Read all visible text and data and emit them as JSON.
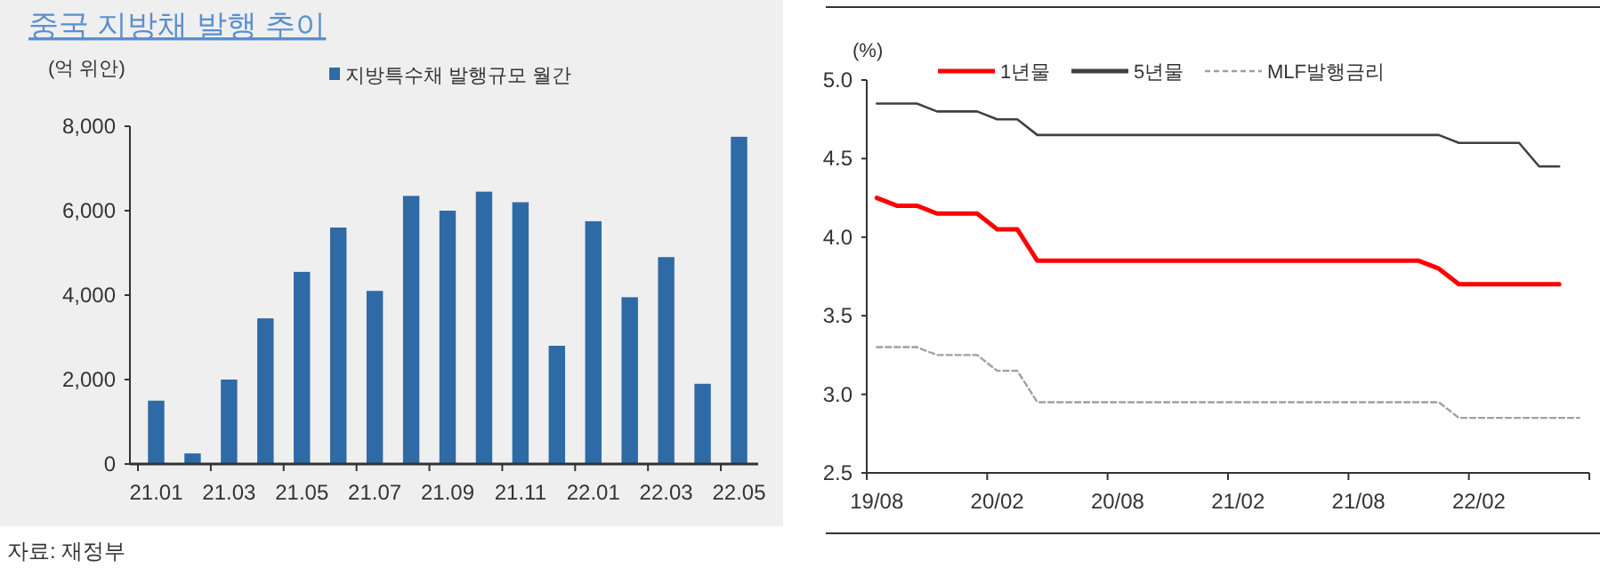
{
  "chart_data": [
    {
      "type": "bar",
      "title": "중국 지방채 발행 추이",
      "ylabel": "(억 위안)",
      "categories": [
        "21.01",
        null,
        "21.03",
        null,
        "21.05",
        null,
        "21.07",
        null,
        "21.09",
        null,
        "21.11",
        null,
        "22.01",
        null,
        "22.03",
        null,
        "22.05"
      ],
      "series": [
        {
          "name": "지방특수채 발행규모 월간",
          "color": "#2e6aa6",
          "values": [
            1500,
            250,
            2000,
            3450,
            4550,
            5600,
            4100,
            6350,
            6000,
            6450,
            6200,
            2800,
            5750,
            3950,
            4900,
            1900,
            7750
          ]
        }
      ],
      "ylim": [
        0,
        8000
      ],
      "yticks": [
        {
          "value": 0,
          "label": "0"
        },
        {
          "value": 2000,
          "label": "2,000"
        },
        {
          "value": 4000,
          "label": "4,000"
        },
        {
          "value": 6000,
          "label": "6,000"
        },
        {
          "value": 8000,
          "label": "8,000"
        }
      ],
      "grid": false,
      "legend": "top",
      "annotations": [
        "자료: 재정부"
      ]
    },
    {
      "type": "line",
      "ylabel": "(%)",
      "categories": [
        "19/08",
        null,
        null,
        null,
        null,
        null,
        "20/02",
        null,
        null,
        null,
        null,
        null,
        "20/08",
        null,
        null,
        null,
        null,
        null,
        "21/02",
        null,
        null,
        null,
        null,
        null,
        "21/08",
        null,
        null,
        null,
        null,
        null,
        "22/02",
        null,
        null,
        null,
        null,
        null
      ],
      "ylim": [
        2.5,
        5
      ],
      "yticks": [
        {
          "value": 2.5,
          "label": "2.5"
        },
        {
          "value": 3,
          "label": "3.0"
        },
        {
          "value": 3.5,
          "label": "3.5"
        },
        {
          "value": 4,
          "label": "4.0"
        },
        {
          "value": 4.5,
          "label": "4.5"
        },
        {
          "value": 5,
          "label": "5.0"
        }
      ],
      "grid": false,
      "legend": "top",
      "series": [
        {
          "name": "1년물",
          "color": "#ff0000",
          "line_style": "solid",
          "values": [
            4.25,
            4.2,
            4.2,
            4.15,
            4.15,
            4.15,
            4.05,
            4.05,
            3.85,
            3.85,
            3.85,
            3.85,
            3.85,
            3.85,
            3.85,
            3.85,
            3.85,
            3.85,
            3.85,
            3.85,
            3.85,
            3.85,
            3.85,
            3.85,
            3.85,
            3.85,
            3.85,
            3.85,
            3.8,
            3.7,
            3.7,
            3.7,
            3.7,
            3.7,
            3.7,
            null
          ]
        },
        {
          "name": "5년물",
          "color": "#404040",
          "line_style": "solid",
          "values": [
            4.85,
            4.85,
            4.85,
            4.8,
            4.8,
            4.8,
            4.75,
            4.75,
            4.65,
            4.65,
            4.65,
            4.65,
            4.65,
            4.65,
            4.65,
            4.65,
            4.65,
            4.65,
            4.65,
            4.65,
            4.65,
            4.65,
            4.65,
            4.65,
            4.65,
            4.65,
            4.65,
            4.65,
            4.65,
            4.6,
            4.6,
            4.6,
            4.6,
            4.45,
            4.45,
            null
          ]
        },
        {
          "name": "MLF발행금리",
          "color": "#a0a0a0",
          "line_style": "dashed",
          "values": [
            3.3,
            3.3,
            3.3,
            3.25,
            3.25,
            3.25,
            3.15,
            3.15,
            2.95,
            2.95,
            2.95,
            2.95,
            2.95,
            2.95,
            2.95,
            2.95,
            2.95,
            2.95,
            2.95,
            2.95,
            2.95,
            2.95,
            2.95,
            2.95,
            2.95,
            2.95,
            2.95,
            2.95,
            2.95,
            2.85,
            2.85,
            2.85,
            2.85,
            2.85,
            2.85,
            2.85
          ]
        }
      ]
    }
  ]
}
